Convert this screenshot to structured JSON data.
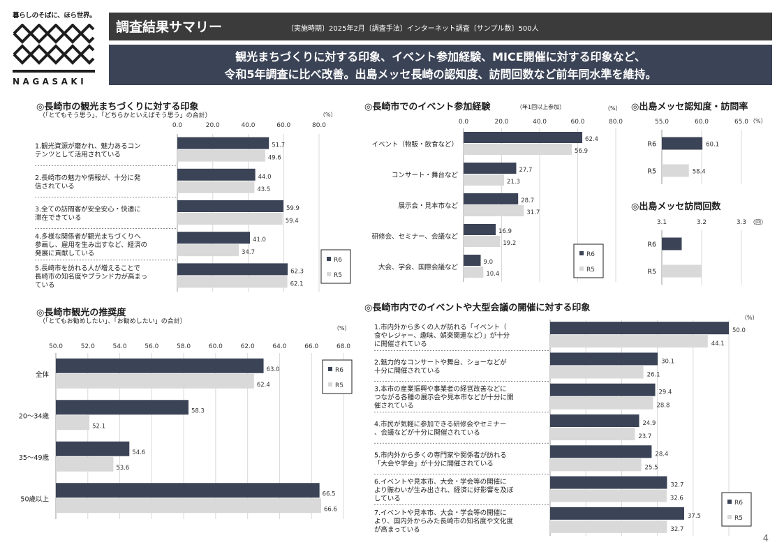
{
  "logo": {
    "tagline": "暮らしのそばに、ほら世界。",
    "wordmark": "NAGASAKI"
  },
  "header": {
    "title": "調査結果サマリー",
    "meta": "〔実施時期〕2025年2月〔調査手法〕インターネット調査〔サンプル数〕500人"
  },
  "banner": {
    "line1": "観光まちづくりに対する印象、イベント参加経験、MICE開催に対する印象など、",
    "line2": "令和5年調査に比べ改善。出島メッセ長崎の認知度、訪問回数など前年同水準を維持。"
  },
  "sections": {
    "impression": {
      "title": "◎長崎市の観光まちづくりに対する印象",
      "note": "（「とてもそう思う」、「どちらかといえばそう思う」の合計）",
      "unit": "（%）"
    },
    "event": {
      "title": "◎長崎市でのイベント参加経験",
      "note": "（年1回以上参加）",
      "unit": "（%）"
    },
    "recognition": {
      "title": "◎出島メッセ認知度・訪問率",
      "unit": "（%）"
    },
    "visits": {
      "title": "◎出島メッセ訪問回数",
      "unit": "（回）"
    },
    "recommend": {
      "title": "◎長崎市観光の推奨度",
      "note": "（「とてもお勧めしたい」、「お勧めしたい」の合計）",
      "unit": "（%）"
    },
    "mice": {
      "title": "◎長崎市内でのイベントや大型会議の開催に対する印象",
      "unit": "（%）"
    }
  },
  "colors": {
    "R6": "#3b4356",
    "R5": "#d9d9d9",
    "grid": "#d9d9d9"
  },
  "page_number": "4",
  "chart_data": [
    {
      "id": "impression",
      "type": "bar",
      "categories": [
        "1.観光資源が磨かれ、魅力あるコンテンツとして活用されている",
        "2.長崎市の魅力や情報が、十分に発信されている",
        "3.全ての訪問客が安全安心・快適に滞在できている",
        "4.多様な関係者が観光まちづくりへ参画し、雇用を生み出すなど、経済の発展に貢献している",
        "5.長崎市を訪れる人が増えることで長崎市の知名度やブランド力が高まっている"
      ],
      "series": [
        {
          "name": "R6",
          "values": [
            51.7,
            44.0,
            59.9,
            41.0,
            62.3
          ]
        },
        {
          "name": "R5",
          "values": [
            49.6,
            43.5,
            59.4,
            34.7,
            62.1
          ]
        }
      ],
      "xlim": [
        0,
        80
      ],
      "ticks": [
        0,
        20,
        40,
        60,
        80
      ],
      "tick_decimals": 1
    },
    {
      "id": "event",
      "type": "bar",
      "categories": [
        "イベント（物販・飲食など）",
        "コンサート・舞台など",
        "展示会・見本市など",
        "研修会、セミナー、会議など",
        "大会、学会、国際会議など"
      ],
      "series": [
        {
          "name": "R6",
          "values": [
            62.4,
            27.7,
            28.7,
            16.9,
            9.0
          ]
        },
        {
          "name": "R5",
          "values": [
            56.9,
            21.3,
            31.7,
            19.2,
            10.4
          ]
        }
      ],
      "xlim": [
        0,
        80
      ],
      "ticks": [
        0,
        20,
        40,
        60,
        80
      ],
      "tick_decimals": 1
    },
    {
      "id": "recognition",
      "type": "bar",
      "categories": [
        "R6",
        "R5"
      ],
      "values": [
        60.1,
        58.4
      ],
      "xlim": [
        55,
        65
      ],
      "ticks": [
        55,
        60,
        65
      ],
      "tick_decimals": 1
    },
    {
      "id": "visits",
      "type": "bar",
      "categories": [
        "R6",
        "R5"
      ],
      "values": [
        3.15,
        3.2
      ],
      "xlim": [
        3.1,
        3.3
      ],
      "ticks": [
        3.1,
        3.2,
        3.3
      ],
      "tick_decimals": 1
    },
    {
      "id": "recommend",
      "type": "bar",
      "categories": [
        "全体",
        "20〜34歳",
        "35〜49歳",
        "50歳以上"
      ],
      "series": [
        {
          "name": "R6",
          "values": [
            63.0,
            58.3,
            54.6,
            66.5
          ]
        },
        {
          "name": "R5",
          "values": [
            62.4,
            52.1,
            53.6,
            66.6
          ]
        }
      ],
      "xlim": [
        50,
        68
      ],
      "ticks": [
        50,
        52,
        54,
        56,
        58,
        60,
        62,
        64,
        66,
        68
      ],
      "tick_decimals": 1
    },
    {
      "id": "mice",
      "type": "bar",
      "categories": [
        "1.市内外から多くの人が訪れる「イベント（食やレジャー、趣味、娯楽関連など）」が十分に開催されている",
        "2.魅力的なコンサートや舞台、ショーなどが十分に開催されている",
        "3.本市の産業振興や事業者の経営改善などにつながる各種の展示会や見本市などが十分に開催されている",
        "4.市民が気軽に参加できる研修会やセミナー、会議などが十分に開催されている",
        "5.市内外から多くの専門家や関係者が訪れる「大会や学会」が十分に開催されている",
        "6.イベントや見本市、大会・学会等の開催により賑わいが生み出され、経済に好影響を及ぼしている",
        "7.イベントや見本市、大会・学会等の開催により、国内外からみた長崎市の知名度や文化度が高まっている"
      ],
      "series": [
        {
          "name": "R6",
          "values": [
            50.0,
            30.1,
            29.4,
            24.9,
            28.4,
            32.7,
            37.5
          ]
        },
        {
          "name": "R5",
          "values": [
            44.1,
            26.1,
            28.8,
            23.7,
            25.5,
            32.6,
            32.7
          ]
        }
      ]
    }
  ]
}
